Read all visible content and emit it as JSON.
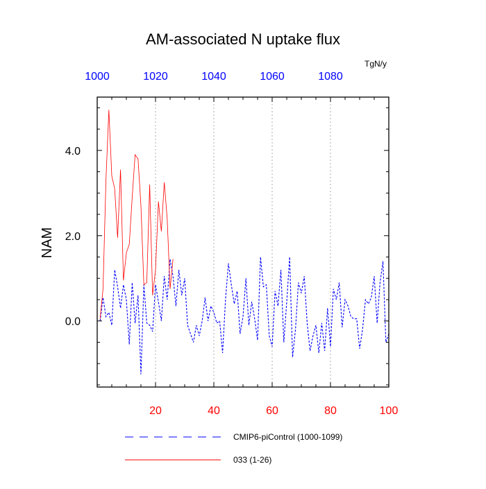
{
  "chart_data": {
    "type": "line",
    "title": "AM-associated N uptake flux",
    "ylabel": "NAM",
    "units": "TgN/y",
    "xlim": [
      0,
      100
    ],
    "ylim": [
      -1.55,
      5.25
    ],
    "x_ticks_bottom": [
      {
        "value": 20,
        "label": "20"
      },
      {
        "value": 40,
        "label": "40"
      },
      {
        "value": 60,
        "label": "60"
      },
      {
        "value": 80,
        "label": "80"
      },
      {
        "value": 100,
        "label": "100"
      }
    ],
    "x_ticks_top": [
      {
        "value": 0,
        "label": "1000"
      },
      {
        "value": 20,
        "label": "1020"
      },
      {
        "value": 40,
        "label": "1040"
      },
      {
        "value": 60,
        "label": "1060"
      },
      {
        "value": 80,
        "label": "1080"
      }
    ],
    "y_ticks": [
      {
        "value": 0.0,
        "label": "0.0"
      },
      {
        "value": 2.0,
        "label": "2.0"
      },
      {
        "value": 4.0,
        "label": "4.0"
      }
    ],
    "grid_x_at": [
      20,
      40,
      60,
      80
    ],
    "series": [
      {
        "name": "CMIP6-piControl (1000-1099)",
        "color": "#0000ff",
        "style": "dashed",
        "x": [
          1,
          2,
          3,
          4,
          5,
          6,
          7,
          8,
          9,
          10,
          11,
          12,
          13,
          14,
          15,
          16,
          17,
          18,
          19,
          20,
          21,
          22,
          23,
          24,
          25,
          26,
          27,
          28,
          29,
          30,
          31,
          32,
          33,
          34,
          35,
          36,
          37,
          38,
          39,
          40,
          41,
          42,
          43,
          44,
          45,
          46,
          47,
          48,
          49,
          50,
          51,
          52,
          53,
          54,
          55,
          56,
          57,
          58,
          59,
          60,
          61,
          62,
          63,
          64,
          65,
          66,
          67,
          68,
          69,
          70,
          71,
          72,
          73,
          74,
          75,
          76,
          77,
          78,
          79,
          80,
          81,
          82,
          83,
          84,
          85,
          86,
          87,
          88,
          89,
          90,
          91,
          92,
          93,
          94,
          95,
          96,
          97,
          98,
          99,
          100
        ],
        "y": [
          0.0,
          0.55,
          0.1,
          0.2,
          -0.1,
          1.2,
          0.8,
          0.3,
          0.85,
          0.5,
          -0.55,
          0.9,
          -0.05,
          0.6,
          -1.25,
          0.85,
          -0.05,
          -0.1,
          -0.25,
          0.85,
          0.45,
          0.0,
          1.05,
          0.5,
          1.45,
          1.05,
          0.35,
          1.2,
          0.6,
          1.0,
          -0.1,
          -0.3,
          -0.5,
          -0.1,
          -0.35,
          0.0,
          0.55,
          0.0,
          0.35,
          0.2,
          -0.05,
          0.0,
          -0.75,
          0.5,
          1.35,
          0.85,
          0.4,
          0.7,
          -0.3,
          0.1,
          1.0,
          -0.1,
          0.45,
          0.05,
          -0.45,
          1.5,
          0.8,
          0.85,
          -0.35,
          -0.6,
          0.7,
          0.35,
          1.2,
          -0.5,
          0.45,
          1.5,
          -0.85,
          -0.2,
          0.9,
          0.65,
          1.05,
          -0.05,
          -0.7,
          -0.35,
          -0.1,
          -0.75,
          -0.05,
          -0.7,
          0.3,
          -0.6,
          0.75,
          0.5,
          0.9,
          -0.15,
          0.5,
          0.35,
          0.1,
          0.05,
          0.05,
          -0.65,
          -0.2,
          0.5,
          0.4,
          0.55,
          1.05,
          -0.05,
          0.9,
          1.4,
          -0.5,
          -0.3
        ]
      },
      {
        "name": "033 (1-26)",
        "color": "#ff0000",
        "style": "solid",
        "x": [
          1,
          2,
          3,
          4,
          5,
          6,
          7,
          8,
          9,
          10,
          11,
          12,
          13,
          14,
          15,
          16,
          17,
          18,
          19,
          20,
          21,
          22,
          23,
          24,
          25,
          26
        ],
        "y": [
          0.05,
          0.75,
          3.3,
          4.95,
          3.4,
          3.1,
          1.95,
          3.55,
          0.95,
          1.6,
          1.8,
          2.9,
          3.9,
          3.8,
          2.7,
          0.85,
          0.9,
          3.2,
          0.6,
          1.2,
          2.8,
          2.1,
          3.25,
          2.4,
          0.75,
          1.45
        ]
      }
    ],
    "legend": {
      "position": "bottom",
      "entries": [
        {
          "label": "CMIP6-piControl (1000-1099)",
          "color": "#0000ff",
          "style": "dashed"
        },
        {
          "label": "033 (1-26)",
          "color": "#ff0000",
          "style": "solid"
        }
      ]
    }
  }
}
